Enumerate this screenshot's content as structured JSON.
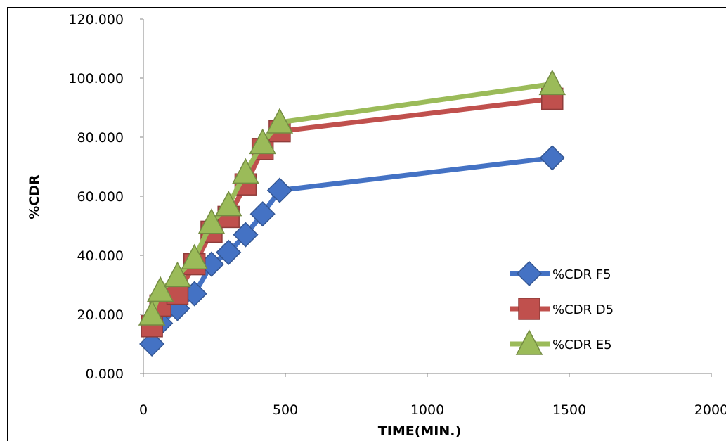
{
  "chart_data": {
    "type": "line",
    "title": "",
    "xlabel": "TIME(MIN.)",
    "ylabel": "%CDR",
    "xlim": [
      0,
      2000
    ],
    "ylim": [
      0,
      120
    ],
    "xticks": [
      "0",
      "500",
      "1000",
      "1500",
      "2000"
    ],
    "yticks": [
      "0.000",
      "20.000",
      "40.000",
      "60.000",
      "80.000",
      "100.000",
      "120.000"
    ],
    "grid": false,
    "legend_position": "right",
    "series": [
      {
        "name": "%CDR F5",
        "color": "#4472c4",
        "marker": "diamond",
        "x": [
          30,
          60,
          120,
          180,
          240,
          300,
          360,
          420,
          480,
          1440
        ],
        "y": [
          10,
          17,
          22,
          27,
          37,
          41,
          47,
          54,
          62,
          73
        ]
      },
      {
        "name": "%CDR D5",
        "color": "#c0504d",
        "marker": "square",
        "x": [
          30,
          60,
          120,
          180,
          240,
          300,
          360,
          420,
          480,
          1440
        ],
        "y": [
          16,
          23,
          27,
          37,
          48,
          53,
          64,
          76,
          82,
          93
        ]
      },
      {
        "name": "%CDR E5",
        "color": "#9bbb59",
        "marker": "triangle",
        "x": [
          30,
          60,
          120,
          180,
          240,
          300,
          360,
          420,
          480,
          1440
        ],
        "y": [
          20,
          28,
          33,
          39,
          51,
          57,
          68,
          78,
          85,
          98
        ]
      }
    ]
  }
}
